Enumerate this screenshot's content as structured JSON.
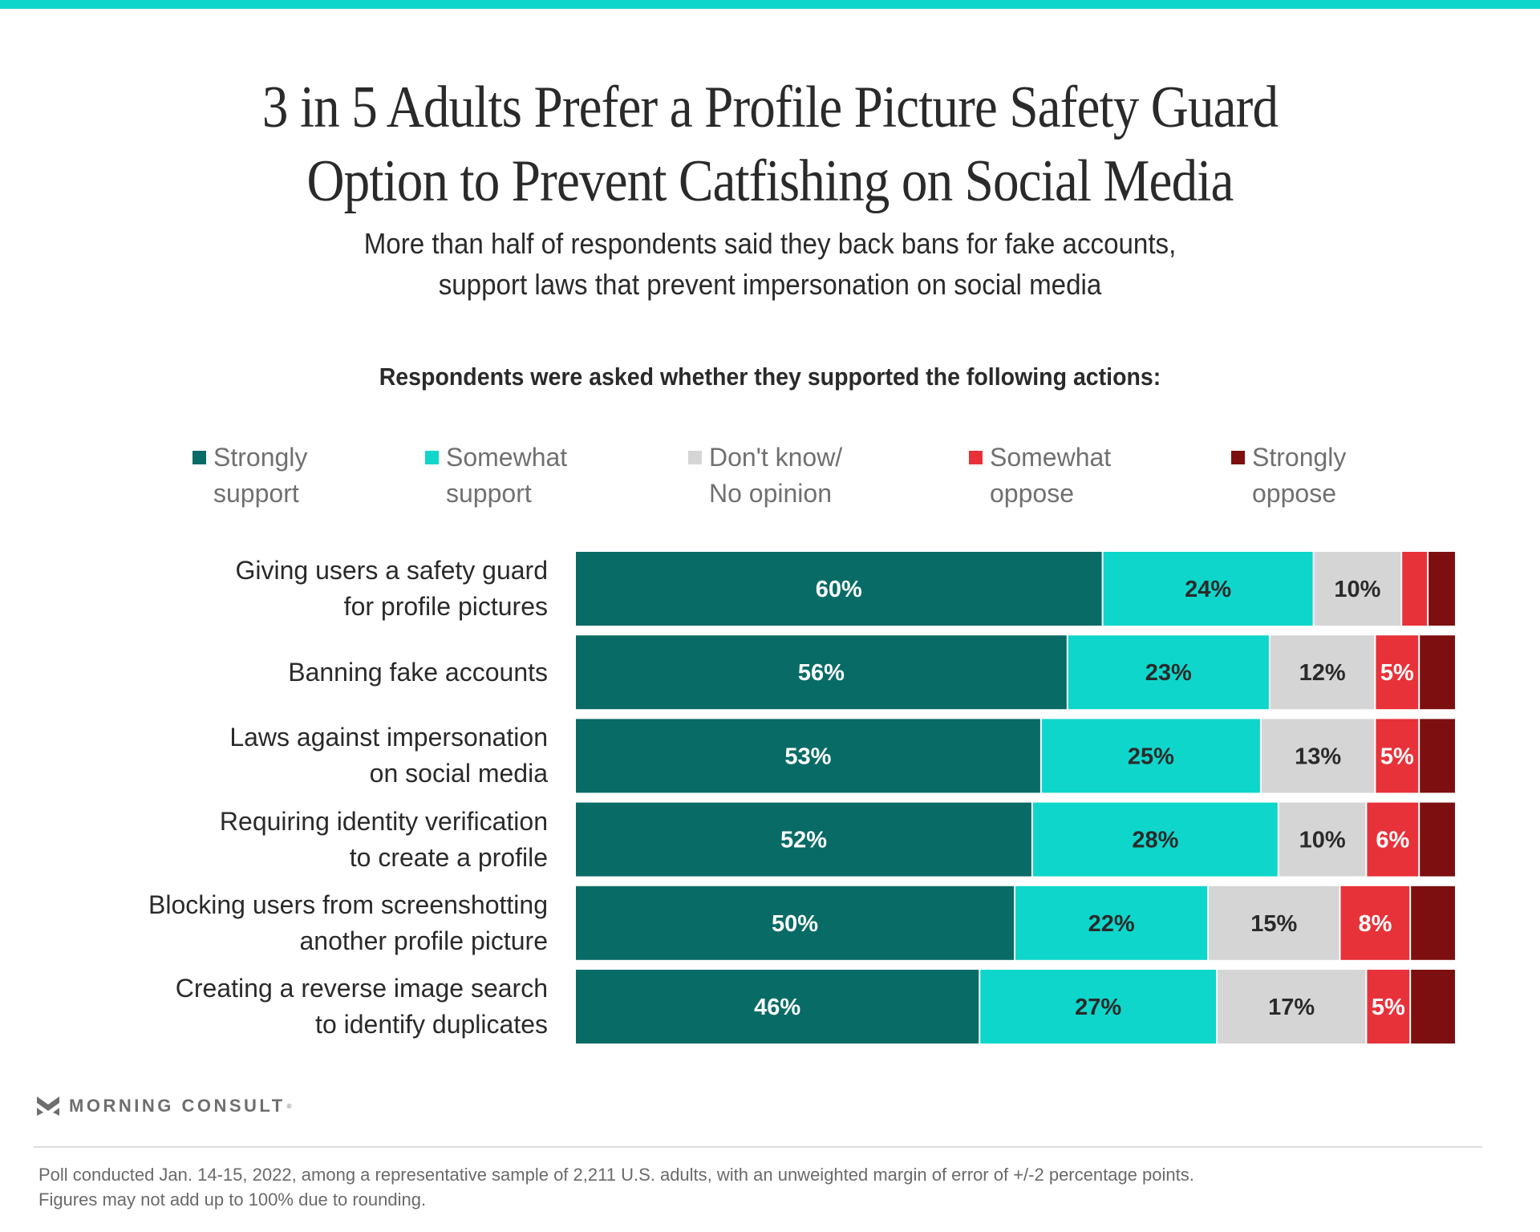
{
  "header": {
    "title": "3 in 5 Adults Prefer a Profile Picture Safety Guard\nOption to Prevent Catfishing on Social Media",
    "title_line1": "3 in 5 Adults Prefer a Profile Picture Safety Guard",
    "title_line2": "Option to Prevent Catfishing on Social Media",
    "subtitle_line1": "More than half of respondents said they back bans for fake accounts,",
    "subtitle_line2": "support laws that prevent impersonation on social media",
    "question": "Respondents were asked whether they supported the following actions:"
  },
  "colors": {
    "accent_bar": "#0fd6cb",
    "strongly_support": "#086b66",
    "somewhat_support": "#0fd6cb",
    "dont_know": "#d5d5d5",
    "somewhat_oppose": "#e8323a",
    "strongly_oppose": "#7d0f10"
  },
  "chart_data": {
    "type": "bar",
    "orientation": "horizontal",
    "stacked": true,
    "title": "3 in 5 Adults Prefer a Profile Picture Safety Guard Option to Prevent Catfishing on Social Media",
    "subtitle": "More than half of respondents said they back bans for fake accounts, support laws that prevent impersonation on social media",
    "xlabel": "",
    "ylabel": "",
    "xlim": [
      0,
      100
    ],
    "grid": false,
    "legend_position": "top",
    "categories": [
      "Giving users a safety guard\nfor profile pictures",
      "Banning fake accounts",
      "Laws against impersonation\non social media",
      "Requiring identity verification\nto create a profile",
      "Blocking users from screenshotting\nanother profile picture",
      "Creating a reverse image search\nto identify duplicates"
    ],
    "series": [
      {
        "name": "Strongly\nsupport",
        "color": "#086b66",
        "label_color": "#ffffff",
        "values": [
          60,
          56,
          53,
          52,
          50,
          46
        ],
        "labels_shown": [
          true,
          true,
          true,
          true,
          true,
          true
        ]
      },
      {
        "name": "Somewhat\nsupport",
        "color": "#0fd6cb",
        "label_color": "#2a2a2a",
        "values": [
          24,
          23,
          25,
          28,
          22,
          27
        ],
        "labels_shown": [
          true,
          true,
          true,
          true,
          true,
          true
        ]
      },
      {
        "name": "Don't know/\nNo opinion",
        "color": "#d5d5d5",
        "label_color": "#2a2a2a",
        "values": [
          10,
          12,
          13,
          10,
          15,
          17
        ],
        "labels_shown": [
          true,
          true,
          true,
          true,
          true,
          true
        ]
      },
      {
        "name": "Somewhat\noppose",
        "color": "#e8323a",
        "label_color": "#ffffff",
        "values": [
          3,
          5,
          5,
          6,
          8,
          5
        ],
        "labels_shown": [
          false,
          true,
          true,
          true,
          true,
          true
        ]
      },
      {
        "name": "Strongly\noppose",
        "color": "#7d0f10",
        "label_color": "#ffffff",
        "values": [
          3,
          4,
          4,
          4,
          5,
          4
        ],
        "labels_shown": [
          false,
          false,
          false,
          false,
          false,
          false
        ]
      }
    ],
    "value_suffix": "%"
  },
  "branding": {
    "logo_text": "MORNING CONSULT",
    "logo_mark": "®"
  },
  "footer": {
    "note": "Poll conducted Jan. 14-15, 2022, among a representative sample of 2,211 U.S. adults, with an unweighted margin of error of +/-2 percentage points.\nFigures may not add up to 100% due to rounding."
  }
}
